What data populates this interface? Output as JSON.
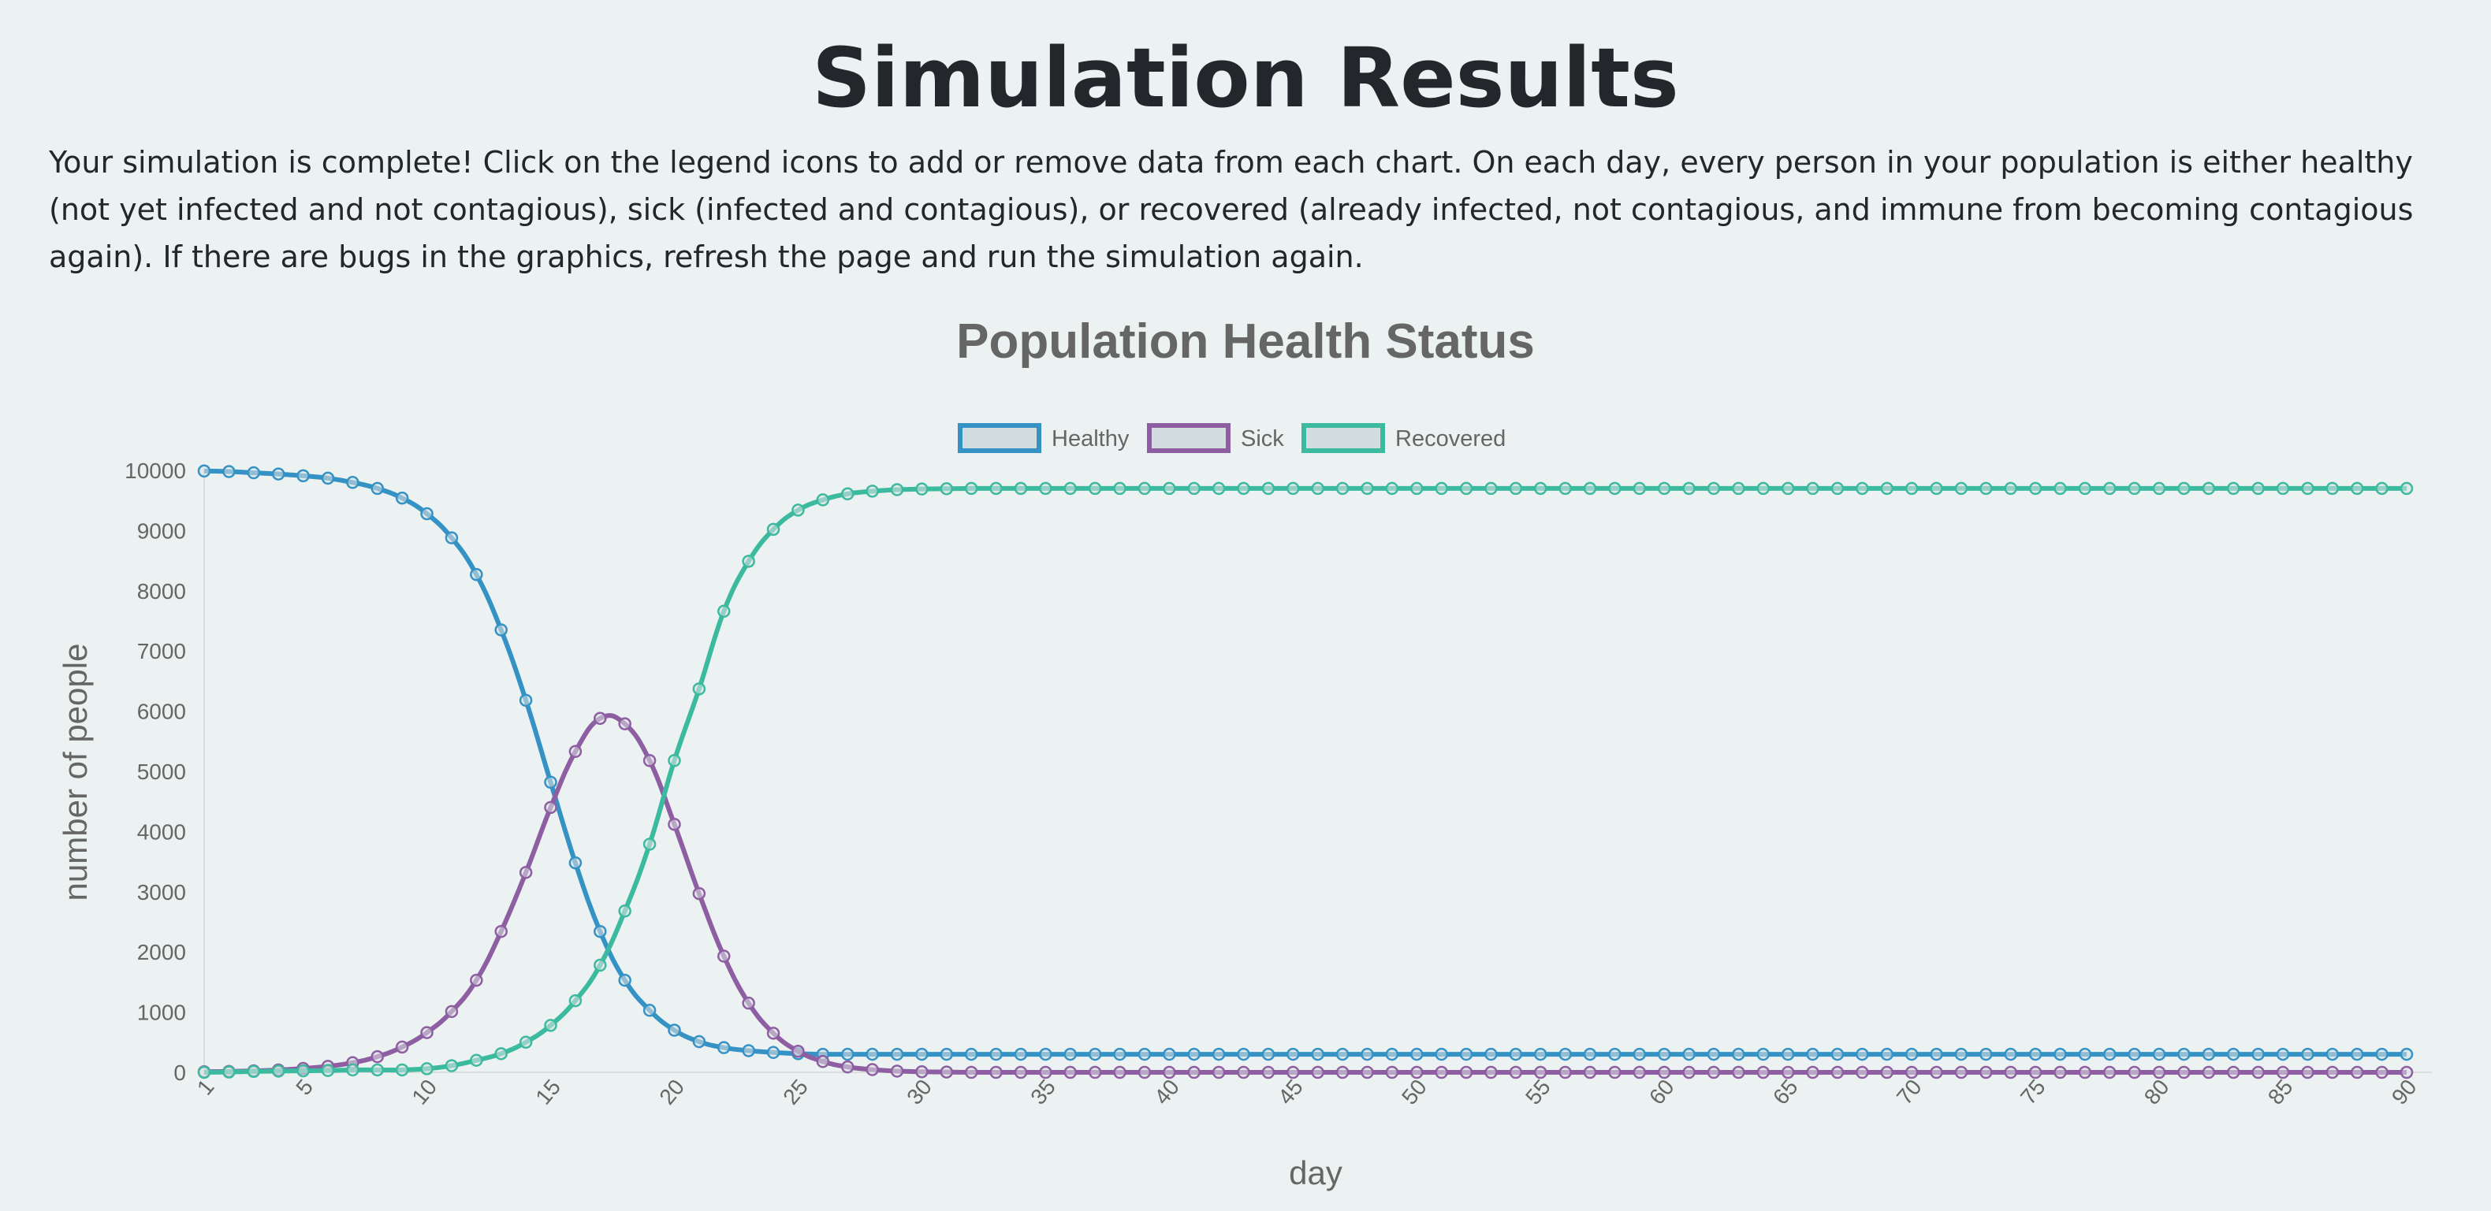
{
  "page": {
    "title": "Simulation Results",
    "intro": "Your simulation is complete! Click on the legend icons to add or remove data from each chart. On each day, every person in your population is either healthy (not yet infected and not contagious), sick (infected and contagious), or recovered (already infected, not contagious, and immune from becoming contagious again). If there are bugs in the graphics, refresh the page and run the simulation again."
  },
  "chart_data": {
    "type": "line",
    "title": "Population Health Status",
    "xlabel": "day",
    "ylabel": "number of people",
    "xlim": [
      1,
      90
    ],
    "ylim": [
      0,
      10000
    ],
    "x_tick_labels": [
      "1",
      "5",
      "10",
      "15",
      "20",
      "25",
      "30",
      "35",
      "40",
      "45",
      "50",
      "55",
      "60",
      "65",
      "70",
      "75",
      "80",
      "85",
      "90"
    ],
    "y_tick_labels": [
      "0",
      "1000",
      "2000",
      "3000",
      "4000",
      "5000",
      "6000",
      "7000",
      "8000",
      "9000",
      "10000"
    ],
    "grid": false,
    "legend_position": "top-center",
    "x": [
      1,
      2,
      3,
      4,
      5,
      6,
      7,
      8,
      9,
      10,
      11,
      12,
      13,
      14,
      15,
      16,
      17,
      18,
      19,
      20,
      21,
      22,
      23,
      24,
      25,
      26,
      27,
      28,
      29,
      30,
      31,
      32,
      33,
      34,
      35,
      36,
      37,
      38,
      39,
      40,
      41,
      42,
      43,
      44,
      45,
      46,
      47,
      48,
      49,
      50,
      51,
      52,
      53,
      54,
      55,
      56,
      57,
      58,
      59,
      60,
      61,
      62,
      63,
      64,
      65,
      66,
      67,
      68,
      69,
      70,
      71,
      72,
      73,
      74,
      75,
      76,
      77,
      78,
      79,
      80,
      81,
      82,
      83,
      84,
      85,
      86,
      87,
      88,
      89,
      90
    ],
    "series": [
      {
        "name": "Healthy",
        "color": "#3592c4",
        "values": [
          9990,
          9980,
          9960,
          9940,
          9910,
          9870,
          9800,
          9700,
          9540,
          9280,
          8880,
          8270,
          7350,
          6180,
          4820,
          3480,
          2340,
          1530,
          1030,
          700,
          510,
          410,
          360,
          330,
          310,
          300,
          300,
          300,
          300,
          300,
          300,
          300,
          300,
          300,
          300,
          300,
          300,
          300,
          300,
          300,
          300,
          300,
          300,
          300,
          300,
          300,
          300,
          300,
          300,
          300,
          300,
          300,
          300,
          300,
          300,
          300,
          300,
          300,
          300,
          300,
          300,
          300,
          300,
          300,
          300,
          300,
          300,
          300,
          300,
          300,
          300,
          300,
          300,
          300,
          300,
          300,
          300,
          300,
          300,
          300,
          300,
          300,
          300,
          300,
          300,
          300,
          300,
          300,
          300,
          300
        ]
      },
      {
        "name": "Sick",
        "color": "#8e5ea2",
        "values": [
          10,
          15,
          25,
          40,
          65,
          100,
          160,
          260,
          420,
          660,
          1010,
          1530,
          2340,
          3320,
          4400,
          5330,
          5880,
          5790,
          5180,
          4120,
          2970,
          1930,
          1150,
          650,
          350,
          180,
          90,
          45,
          20,
          10,
          5,
          0,
          0,
          0,
          0,
          0,
          0,
          0,
          0,
          0,
          0,
          0,
          0,
          0,
          0,
          0,
          0,
          0,
          0,
          0,
          0,
          0,
          0,
          0,
          0,
          0,
          0,
          0,
          0,
          0,
          0,
          0,
          0,
          0,
          0,
          0,
          0,
          0,
          0,
          0,
          0,
          0,
          0,
          0,
          0,
          0,
          0,
          0,
          0,
          0,
          0,
          0,
          0,
          0,
          0,
          0,
          0,
          0,
          0,
          0
        ]
      },
      {
        "name": "Recovered",
        "color": "#3cba9f",
        "values": [
          0,
          5,
          15,
          20,
          25,
          30,
          40,
          40,
          40,
          60,
          110,
          200,
          310,
          500,
          780,
          1190,
          1780,
          2680,
          3790,
          5180,
          6370,
          7660,
          8490,
          9020,
          9340,
          9510,
          9610,
          9655,
          9680,
          9690,
          9695,
          9700,
          9700,
          9700,
          9700,
          9700,
          9700,
          9700,
          9700,
          9700,
          9700,
          9700,
          9700,
          9700,
          9700,
          9700,
          9700,
          9700,
          9700,
          9700,
          9700,
          9700,
          9700,
          9700,
          9700,
          9700,
          9700,
          9700,
          9700,
          9700,
          9700,
          9700,
          9700,
          9700,
          9700,
          9700,
          9700,
          9700,
          9700,
          9700,
          9700,
          9700,
          9700,
          9700,
          9700,
          9700,
          9700,
          9700,
          9700,
          9700,
          9700,
          9700,
          9700,
          9700,
          9700,
          9700,
          9700,
          9700,
          9700,
          9700
        ]
      }
    ]
  }
}
